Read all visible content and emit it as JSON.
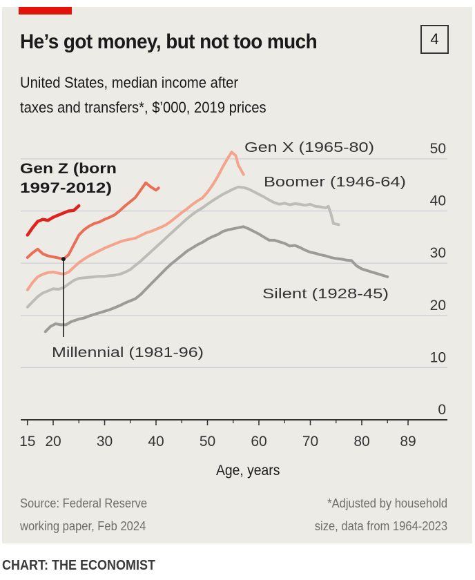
{
  "header": {
    "title": "He’s got money, but not too much",
    "chart_number": "4",
    "subtitle_line1": "United States, median income after",
    "subtitle_line2": "taxes and transfers*, $’000, 2019 prices"
  },
  "footer": {
    "source_line1": "Source: Federal Reserve",
    "source_line2": "working paper, Feb 2024",
    "note_line1": "*Adjusted by household",
    "note_line2": "size, data from 1964-2023",
    "credit": "CHART: THE ECONOMIST"
  },
  "colors": {
    "background": "#ecebe5",
    "accent_red": "#e3120b",
    "gridline": "#c9ccd4",
    "gen_z": "#e0221c",
    "millennial": "#ea6e55",
    "gen_x": "#f4a48c",
    "boomer": "#bdbdb8",
    "silent": "#9b9b97"
  },
  "chart_data": {
    "type": "line",
    "title": "He’s got money, but not too much",
    "subtitle": "United States, median income after taxes and transfers*, $’000, 2019 prices",
    "xlabel": "Age, years",
    "ylabel": "$’000",
    "xlim": [
      15,
      97
    ],
    "ylim": [
      0,
      50
    ],
    "x_ticks": [
      15,
      20,
      30,
      40,
      50,
      60,
      70,
      80,
      89
    ],
    "x_minor_ticks": [
      25,
      35,
      45,
      55,
      65,
      75,
      85
    ],
    "y_ticks": [
      0,
      10,
      20,
      30,
      40,
      50
    ],
    "y_axis_side": "right",
    "grid": true,
    "series": [
      {
        "name": "Gen Z (born 1997-2012)",
        "key": "gen_z",
        "label_bold": true,
        "points": [
          [
            15,
            35.4
          ],
          [
            16,
            36.8
          ],
          [
            17,
            38.0
          ],
          [
            18,
            38.4
          ],
          [
            19,
            38.2
          ],
          [
            20,
            38.8
          ],
          [
            21,
            39.2
          ],
          [
            22,
            39.6
          ],
          [
            23,
            40.0
          ],
          [
            24,
            40.1
          ],
          [
            25,
            41.0
          ]
        ]
      },
      {
        "name": "Millennial (1981-96)",
        "key": "millennial",
        "points": [
          [
            15,
            31.1
          ],
          [
            16,
            32.0
          ],
          [
            17,
            32.7
          ],
          [
            18,
            31.8
          ],
          [
            19,
            31.4
          ],
          [
            20,
            31.2
          ],
          [
            21,
            31.0
          ],
          [
            22,
            30.8
          ],
          [
            23,
            31.6
          ],
          [
            24,
            33.5
          ],
          [
            25,
            35.4
          ],
          [
            26,
            36.4
          ],
          [
            27,
            37.1
          ],
          [
            28,
            37.6
          ],
          [
            29,
            37.9
          ],
          [
            30,
            38.4
          ],
          [
            31,
            38.8
          ],
          [
            32,
            39.3
          ],
          [
            33,
            40.1
          ],
          [
            34,
            41.0
          ],
          [
            35,
            41.8
          ],
          [
            36,
            42.6
          ],
          [
            37,
            44.0
          ],
          [
            38,
            45.4
          ],
          [
            39,
            44.6
          ],
          [
            40,
            44.0
          ],
          [
            40.5,
            44.4
          ]
        ]
      },
      {
        "name": "Gen X (1965-80)",
        "key": "gen_x",
        "points": [
          [
            15,
            24.9
          ],
          [
            16,
            26.3
          ],
          [
            17,
            27.4
          ],
          [
            18,
            27.9
          ],
          [
            19,
            28.2
          ],
          [
            20,
            28.3
          ],
          [
            21,
            28.1
          ],
          [
            22,
            27.9
          ],
          [
            23,
            28.3
          ],
          [
            24,
            29.2
          ],
          [
            25,
            30.1
          ],
          [
            26,
            30.8
          ],
          [
            27,
            31.4
          ],
          [
            28,
            31.9
          ],
          [
            29,
            32.4
          ],
          [
            30,
            32.9
          ],
          [
            31,
            33.3
          ],
          [
            32,
            33.7
          ],
          [
            33,
            34.1
          ],
          [
            34,
            34.4
          ],
          [
            35,
            34.6
          ],
          [
            36,
            34.8
          ],
          [
            37,
            35.3
          ],
          [
            38,
            35.8
          ],
          [
            39,
            36.1
          ],
          [
            40,
            36.5
          ],
          [
            41,
            36.9
          ],
          [
            42,
            37.4
          ],
          [
            43,
            38.1
          ],
          [
            44,
            38.9
          ],
          [
            45,
            39.7
          ],
          [
            46,
            40.4
          ],
          [
            47,
            41.2
          ],
          [
            48,
            41.9
          ],
          [
            49,
            42.5
          ],
          [
            50,
            43.6
          ],
          [
            51,
            45.0
          ],
          [
            52,
            46.6
          ],
          [
            53,
            48.5
          ],
          [
            54,
            50.2
          ],
          [
            54.7,
            51.3
          ],
          [
            55.5,
            50.6
          ],
          [
            56,
            48.8
          ],
          [
            57,
            47.0
          ]
        ]
      },
      {
        "name": "Boomer (1946-64)",
        "key": "boomer",
        "points": [
          [
            15,
            21.6
          ],
          [
            16,
            22.6
          ],
          [
            17,
            23.6
          ],
          [
            18,
            24.3
          ],
          [
            19,
            24.7
          ],
          [
            20,
            25.1
          ],
          [
            21,
            25.0
          ],
          [
            22,
            25.3
          ],
          [
            23,
            26.0
          ],
          [
            24,
            26.7
          ],
          [
            25,
            27.1
          ],
          [
            26,
            27.2
          ],
          [
            27,
            27.3
          ],
          [
            28,
            27.4
          ],
          [
            29,
            27.5
          ],
          [
            30,
            27.5
          ],
          [
            31,
            27.6
          ],
          [
            32,
            27.7
          ],
          [
            33,
            27.9
          ],
          [
            34,
            28.3
          ],
          [
            35,
            28.8
          ],
          [
            36,
            29.6
          ],
          [
            37,
            30.4
          ],
          [
            38,
            31.3
          ],
          [
            39,
            32.2
          ],
          [
            40,
            33.1
          ],
          [
            41,
            34.0
          ],
          [
            42,
            34.9
          ],
          [
            43,
            35.8
          ],
          [
            44,
            36.7
          ],
          [
            45,
            37.6
          ],
          [
            46,
            38.5
          ],
          [
            47,
            39.3
          ],
          [
            48,
            40.0
          ],
          [
            49,
            40.6
          ],
          [
            50,
            41.3
          ],
          [
            51,
            42.0
          ],
          [
            52,
            42.6
          ],
          [
            53,
            43.2
          ],
          [
            54,
            43.7
          ],
          [
            55,
            44.2
          ],
          [
            56,
            44.6
          ],
          [
            57,
            44.5
          ],
          [
            58,
            44.2
          ],
          [
            59,
            43.7
          ],
          [
            60,
            43.2
          ],
          [
            61,
            42.7
          ],
          [
            62,
            42.1
          ],
          [
            63,
            41.6
          ],
          [
            64,
            41.3
          ],
          [
            65,
            41.5
          ],
          [
            66,
            41.2
          ],
          [
            67,
            41.4
          ],
          [
            68,
            41.3
          ],
          [
            69,
            41.1
          ],
          [
            70,
            41.3
          ],
          [
            71,
            40.9
          ],
          [
            72,
            40.8
          ],
          [
            73,
            40.6
          ],
          [
            73.5,
            40.9
          ],
          [
            74,
            39.5
          ],
          [
            74.5,
            37.6
          ],
          [
            75.5,
            37.4
          ]
        ]
      },
      {
        "name": "Silent (1928-45)",
        "key": "silent",
        "points": [
          [
            18.5,
            16.9
          ],
          [
            19.5,
            17.9
          ],
          [
            20.5,
            18.4
          ],
          [
            21.5,
            18.2
          ],
          [
            22.5,
            18.2
          ],
          [
            23.5,
            18.8
          ],
          [
            25,
            19.3
          ],
          [
            26,
            19.5
          ],
          [
            27,
            19.9
          ],
          [
            28,
            20.2
          ],
          [
            29,
            20.5
          ],
          [
            30,
            20.8
          ],
          [
            31,
            21.1
          ],
          [
            32,
            21.5
          ],
          [
            33,
            21.9
          ],
          [
            34,
            22.4
          ],
          [
            35,
            22.8
          ],
          [
            36,
            23.2
          ],
          [
            37,
            24.0
          ],
          [
            38,
            25.0
          ],
          [
            39,
            26.0
          ],
          [
            40,
            27.0
          ],
          [
            41,
            28.0
          ],
          [
            42,
            29.0
          ],
          [
            43,
            29.9
          ],
          [
            44,
            30.7
          ],
          [
            45,
            31.5
          ],
          [
            46,
            32.3
          ],
          [
            47,
            32.9
          ],
          [
            48,
            33.5
          ],
          [
            49,
            34.0
          ],
          [
            50,
            34.6
          ],
          [
            51,
            35.1
          ],
          [
            52,
            35.5
          ],
          [
            53,
            36.1
          ],
          [
            54,
            36.4
          ],
          [
            55,
            36.6
          ],
          [
            56,
            36.8
          ],
          [
            57,
            37.0
          ],
          [
            58,
            36.6
          ],
          [
            59,
            36.1
          ],
          [
            60,
            35.6
          ],
          [
            61,
            35.0
          ],
          [
            62,
            34.4
          ],
          [
            63,
            34.4
          ],
          [
            64,
            34.1
          ],
          [
            65,
            33.8
          ],
          [
            66,
            33.3
          ],
          [
            67,
            33.4
          ],
          [
            68,
            33.0
          ],
          [
            69,
            32.5
          ],
          [
            70,
            32.1
          ],
          [
            71,
            31.9
          ],
          [
            72,
            31.6
          ],
          [
            73,
            31.4
          ],
          [
            74,
            31.1
          ],
          [
            75,
            30.9
          ],
          [
            76,
            30.8
          ],
          [
            77,
            30.6
          ],
          [
            78,
            30.5
          ],
          [
            79,
            29.5
          ],
          [
            80,
            28.9
          ],
          [
            81,
            28.6
          ],
          [
            82,
            28.3
          ],
          [
            83,
            28.0
          ],
          [
            84,
            27.7
          ],
          [
            85,
            27.4
          ]
        ]
      }
    ],
    "annotations": [
      {
        "text": "Gen Z (born",
        "series": "gen_z",
        "bold": true
      },
      {
        "text": "1997-2012)",
        "series": "gen_z",
        "bold": true
      },
      {
        "text": "Millennial (1981-96)",
        "series": "millennial",
        "leader_line_age": 22,
        "leader_line_value": 30.8
      },
      {
        "text": "Gen X (1965-80)",
        "series": "gen_x"
      },
      {
        "text": "Boomer (1946-64)",
        "series": "boomer"
      },
      {
        "text": "Silent (1928-45)",
        "series": "silent"
      }
    ]
  }
}
